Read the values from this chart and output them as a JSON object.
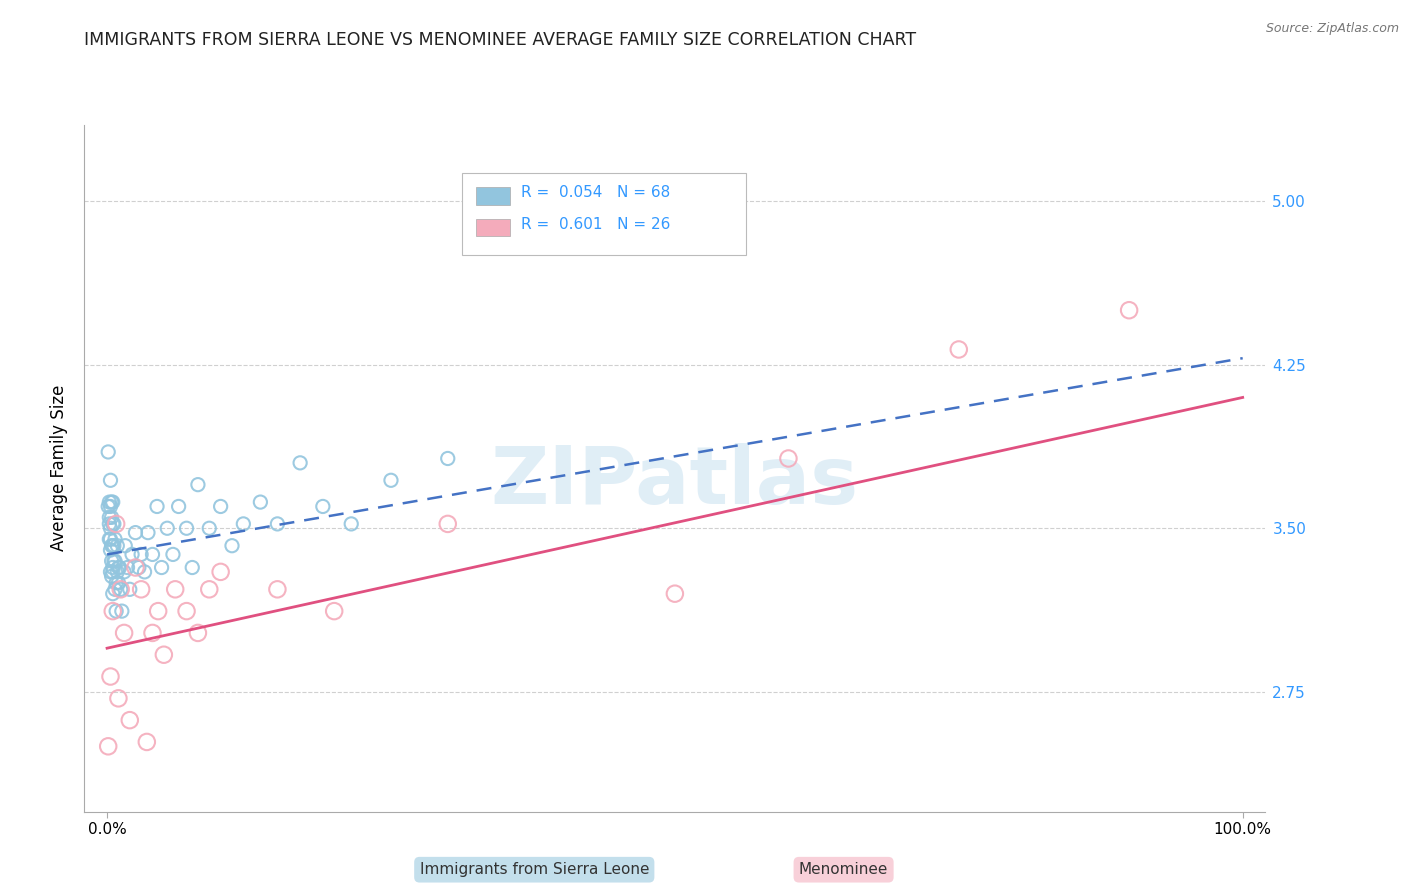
{
  "title": "IMMIGRANTS FROM SIERRA LEONE VS MENOMINEE AVERAGE FAMILY SIZE CORRELATION CHART",
  "source": "Source: ZipAtlas.com",
  "ylabel": "Average Family Size",
  "xlim": [
    -0.02,
    1.02
  ],
  "ylim": [
    2.2,
    5.35
  ],
  "xticks": [
    0.0,
    1.0
  ],
  "xticklabels": [
    "0.0%",
    "100.0%"
  ],
  "yticks_right": [
    2.75,
    3.5,
    4.25,
    5.0
  ],
  "yticks_right_labels": [
    "2.75",
    "3.50",
    "4.25",
    "5.00"
  ],
  "legend_r1": "R = 0.054",
  "legend_n1": "N = 68",
  "legend_r2": "R = 0.601",
  "legend_n2": "N = 26",
  "series1_color": "#92C5DE",
  "series2_color": "#F4ABBB",
  "trendline1_color": "#4472C4",
  "trendline2_color": "#E05080",
  "grid_color": "#D0D0D0",
  "background_color": "#FFFFFF",
  "watermark": "ZIPatlas",
  "series1_x": [
    0.001,
    0.001,
    0.002,
    0.002,
    0.002,
    0.002,
    0.003,
    0.003,
    0.003,
    0.003,
    0.003,
    0.003,
    0.004,
    0.004,
    0.004,
    0.004,
    0.004,
    0.005,
    0.005,
    0.005,
    0.005,
    0.005,
    0.005,
    0.006,
    0.006,
    0.006,
    0.007,
    0.007,
    0.007,
    0.008,
    0.008,
    0.009,
    0.009,
    0.01,
    0.01,
    0.011,
    0.012,
    0.013,
    0.015,
    0.016,
    0.018,
    0.02,
    0.022,
    0.025,
    0.028,
    0.03,
    0.033,
    0.036,
    0.04,
    0.044,
    0.048,
    0.053,
    0.058,
    0.063,
    0.07,
    0.075,
    0.08,
    0.09,
    0.1,
    0.11,
    0.12,
    0.135,
    0.15,
    0.17,
    0.19,
    0.215,
    0.25,
    0.3
  ],
  "series1_y": [
    3.85,
    3.6,
    3.55,
    3.45,
    3.62,
    3.52,
    3.4,
    3.6,
    3.5,
    3.72,
    3.3,
    3.45,
    3.35,
    3.42,
    3.55,
    3.62,
    3.28,
    3.2,
    3.32,
    3.42,
    3.52,
    3.62,
    3.3,
    3.35,
    3.42,
    3.52,
    3.22,
    3.35,
    3.45,
    3.12,
    3.25,
    3.3,
    3.42,
    3.25,
    3.32,
    3.32,
    3.22,
    3.12,
    3.3,
    3.42,
    3.32,
    3.22,
    3.38,
    3.48,
    3.32,
    3.38,
    3.3,
    3.48,
    3.38,
    3.6,
    3.32,
    3.5,
    3.38,
    3.6,
    3.5,
    3.32,
    3.7,
    3.5,
    3.6,
    3.42,
    3.52,
    3.62,
    3.52,
    3.8,
    3.6,
    3.52,
    3.72,
    3.82
  ],
  "series2_x": [
    0.001,
    0.003,
    0.005,
    0.008,
    0.01,
    0.012,
    0.015,
    0.02,
    0.025,
    0.03,
    0.035,
    0.04,
    0.045,
    0.05,
    0.06,
    0.07,
    0.08,
    0.09,
    0.1,
    0.15,
    0.2,
    0.3,
    0.5,
    0.6,
    0.75,
    0.9
  ],
  "series2_y": [
    2.5,
    2.82,
    3.12,
    3.52,
    2.72,
    3.22,
    3.02,
    2.62,
    3.32,
    3.22,
    2.52,
    3.02,
    3.12,
    2.92,
    3.22,
    3.12,
    3.02,
    3.22,
    3.3,
    3.22,
    3.12,
    3.52,
    3.2,
    3.82,
    4.32,
    4.5
  ],
  "trendline1_x": [
    0.0,
    1.0
  ],
  "trendline1_y": [
    3.38,
    4.28
  ],
  "trendline2_x": [
    0.0,
    1.0
  ],
  "trendline2_y": [
    2.95,
    4.1
  ]
}
